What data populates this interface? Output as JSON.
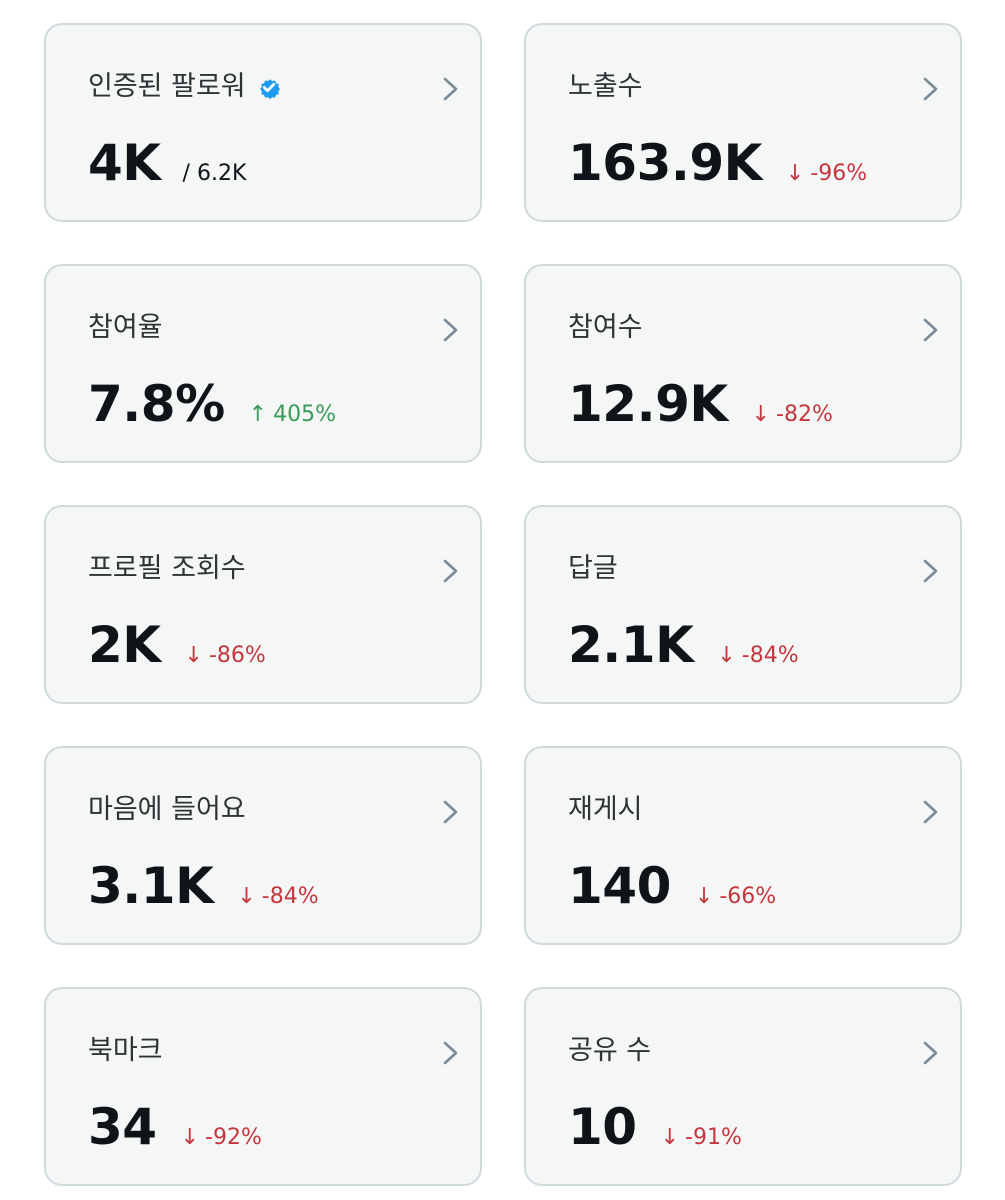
{
  "colors": {
    "verified": "#1d9bf0",
    "down": "#c5363f",
    "up": "#3a9a5b",
    "card_bg": "#f5f7f7",
    "card_border": "#cfd9de"
  },
  "cards": [
    {
      "label": "인증된 팔로워",
      "icon": "verified-badge-icon",
      "value": "4K",
      "sub": "/ 6.2K",
      "arrow": "",
      "delta": "",
      "direction": ""
    },
    {
      "label": "노출수",
      "value": "163.9K",
      "sub": "",
      "arrow": "↓",
      "delta": "-96%",
      "direction": "down"
    },
    {
      "label": "참여율",
      "value": "7.8%",
      "sub": "",
      "arrow": "↑",
      "delta": "405%",
      "direction": "up"
    },
    {
      "label": "참여수",
      "value": "12.9K",
      "sub": "",
      "arrow": "↓",
      "delta": "-82%",
      "direction": "down"
    },
    {
      "label": "프로필 조회수",
      "value": "2K",
      "sub": "",
      "arrow": "↓",
      "delta": "-86%",
      "direction": "down"
    },
    {
      "label": "답글",
      "value": "2.1K",
      "sub": "",
      "arrow": "↓",
      "delta": "-84%",
      "direction": "down"
    },
    {
      "label": "마음에 들어요",
      "value": "3.1K",
      "sub": "",
      "arrow": "↓",
      "delta": "-84%",
      "direction": "down"
    },
    {
      "label": "재게시",
      "value": "140",
      "sub": "",
      "arrow": "↓",
      "delta": "-66%",
      "direction": "down"
    },
    {
      "label": "북마크",
      "value": "34",
      "sub": "",
      "arrow": "↓",
      "delta": "-92%",
      "direction": "down"
    },
    {
      "label": "공유 수",
      "value": "10",
      "sub": "",
      "arrow": "↓",
      "delta": "-91%",
      "direction": "down"
    }
  ]
}
